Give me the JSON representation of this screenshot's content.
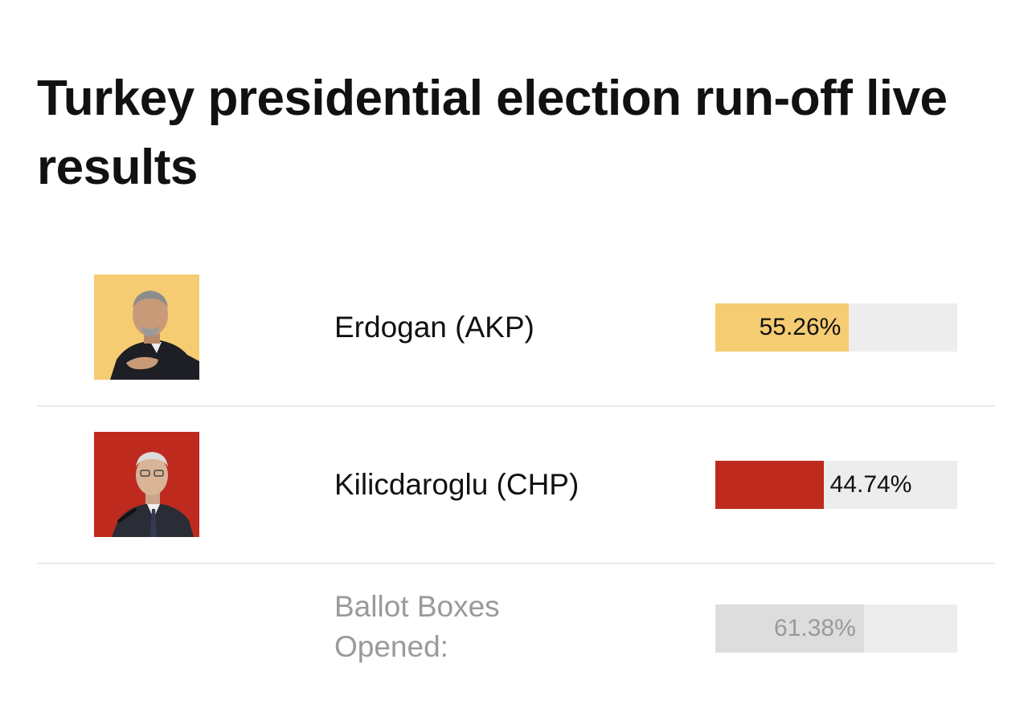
{
  "page": {
    "title": "Turkey presidential election run-off live results"
  },
  "chart_data": {
    "type": "bar",
    "categories": [
      "Erdogan (AKP)",
      "Kilicdaroglu (CHP)"
    ],
    "values": [
      55.26,
      44.74
    ],
    "value_labels": [
      "55.26%",
      "44.74%"
    ],
    "colors": [
      "#f5cc72",
      "#be2a1e"
    ],
    "xlim": [
      0,
      100
    ],
    "ballot_boxes": {
      "label": "Ballot Boxes Opened:",
      "value": 61.38,
      "value_label": "61.38%",
      "color": "#dddddd"
    }
  },
  "candidates": [
    {
      "name": "Erdogan (AKP)",
      "percent": 55.26,
      "percent_label": "55.26%",
      "color": "#f5cc72",
      "photo_icon": "erdogan-portrait"
    },
    {
      "name": "Kilicdaroglu (CHP)",
      "percent": 44.74,
      "percent_label": "44.74%",
      "color": "#be2a1e",
      "photo_icon": "kilicdaroglu-portrait"
    }
  ],
  "ballot_boxes": {
    "label": "Ballot Boxes Opened:",
    "percent": 61.38,
    "percent_label": "61.38%",
    "color": "#dddddd"
  },
  "colors": {
    "track": "#ededed",
    "divider": "#e9e9e9",
    "muted_text": "#9a9a9a"
  }
}
